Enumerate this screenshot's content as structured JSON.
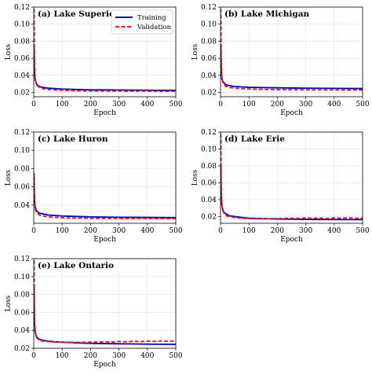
{
  "chart_data": [
    {
      "type": "line",
      "title": "(a) Lake Superior",
      "xlabel": "Epoch",
      "ylabel": "Loss",
      "xlim": [
        0,
        500
      ],
      "ylim": [
        0.015,
        0.12
      ],
      "xticks": [
        0,
        100,
        200,
        300,
        400,
        500
      ],
      "yticks": [
        0.02,
        0.04,
        0.06,
        0.08,
        0.1,
        0.12
      ],
      "ytick_labels": [
        "0.02",
        "0.04",
        "0.06",
        "0.08",
        "0.10",
        "0.12"
      ],
      "grid": true,
      "legend": "top-right",
      "series": [
        {
          "name": "Training",
          "color": "#0000cc",
          "dash": "solid",
          "points": [
            [
              1,
              0.075
            ],
            [
              2,
              0.05
            ],
            [
              3,
              0.042
            ],
            [
              5,
              0.035
            ],
            [
              8,
              0.031
            ],
            [
              12,
              0.029
            ],
            [
              20,
              0.027
            ],
            [
              30,
              0.026
            ],
            [
              50,
              0.025
            ],
            [
              75,
              0.0245
            ],
            [
              100,
              0.024
            ],
            [
              150,
              0.0235
            ],
            [
              200,
              0.023
            ],
            [
              250,
              0.023
            ],
            [
              300,
              0.0228
            ],
            [
              350,
              0.0227
            ],
            [
              400,
              0.0226
            ],
            [
              450,
              0.0225
            ],
            [
              500,
              0.0225
            ]
          ]
        },
        {
          "name": "Validation",
          "color": "#e41a1c",
          "dash": "dashed",
          "points": [
            [
              1,
              0.118
            ],
            [
              2,
              0.07
            ],
            [
              3,
              0.05
            ],
            [
              5,
              0.038
            ],
            [
              8,
              0.031
            ],
            [
              12,
              0.028
            ],
            [
              20,
              0.026
            ],
            [
              30,
              0.0245
            ],
            [
              50,
              0.0235
            ],
            [
              75,
              0.023
            ],
            [
              100,
              0.0225
            ],
            [
              150,
              0.022
            ],
            [
              200,
              0.0218
            ],
            [
              250,
              0.0217
            ],
            [
              300,
              0.0216
            ],
            [
              350,
              0.0215
            ],
            [
              400,
              0.0215
            ],
            [
              450,
              0.0214
            ],
            [
              500,
              0.0214
            ]
          ]
        }
      ]
    },
    {
      "type": "line",
      "title": "(b) Lake Michigan",
      "xlabel": "Epoch",
      "ylabel": "Loss",
      "xlim": [
        0,
        500
      ],
      "ylim": [
        0.015,
        0.12
      ],
      "xticks": [
        0,
        100,
        200,
        300,
        400,
        500
      ],
      "yticks": [
        0.02,
        0.04,
        0.06,
        0.08,
        0.1,
        0.12
      ],
      "ytick_labels": [
        "0.02",
        "0.04",
        "0.06",
        "0.08",
        "0.10",
        "0.12"
      ],
      "grid": true,
      "legend": "",
      "series": [
        {
          "color": "#0000cc",
          "dash": "solid",
          "points": [
            [
              1,
              0.075
            ],
            [
              2,
              0.05
            ],
            [
              3,
              0.043
            ],
            [
              5,
              0.036
            ],
            [
              8,
              0.033
            ],
            [
              12,
              0.031
            ],
            [
              20,
              0.029
            ],
            [
              30,
              0.028
            ],
            [
              50,
              0.027
            ],
            [
              75,
              0.0265
            ],
            [
              100,
              0.026
            ],
            [
              150,
              0.0257
            ],
            [
              200,
              0.0254
            ],
            [
              250,
              0.0252
            ],
            [
              300,
              0.025
            ],
            [
              350,
              0.0249
            ],
            [
              400,
              0.0248
            ],
            [
              450,
              0.0247
            ],
            [
              500,
              0.0246
            ]
          ]
        },
        {
          "color": "#e41a1c",
          "dash": "dashed",
          "points": [
            [
              1,
              0.118
            ],
            [
              2,
              0.07
            ],
            [
              3,
              0.05
            ],
            [
              5,
              0.038
            ],
            [
              8,
              0.032
            ],
            [
              12,
              0.029
            ],
            [
              20,
              0.027
            ],
            [
              30,
              0.026
            ],
            [
              50,
              0.025
            ],
            [
              75,
              0.0245
            ],
            [
              100,
              0.024
            ],
            [
              150,
              0.0235
            ],
            [
              200,
              0.0233
            ],
            [
              250,
              0.0232
            ],
            [
              300,
              0.0231
            ],
            [
              350,
              0.023
            ],
            [
              400,
              0.023
            ],
            [
              450,
              0.0229
            ],
            [
              500,
              0.0229
            ]
          ]
        }
      ]
    },
    {
      "type": "line",
      "title": "(c) Lake Huron",
      "xlabel": "Epoch",
      "ylabel": "Loss",
      "xlim": [
        0,
        500
      ],
      "ylim": [
        0.02,
        0.12
      ],
      "xticks": [
        0,
        100,
        200,
        300,
        400,
        500
      ],
      "yticks": [
        0.04,
        0.06,
        0.08,
        0.1,
        0.12
      ],
      "ytick_labels": [
        "0.04",
        "0.06",
        "0.08",
        "0.10",
        "0.12"
      ],
      "grid": true,
      "legend": "",
      "series": [
        {
          "color": "#0000cc",
          "dash": "solid",
          "points": [
            [
              1,
              0.075
            ],
            [
              2,
              0.052
            ],
            [
              3,
              0.044
            ],
            [
              5,
              0.038
            ],
            [
              8,
              0.035
            ],
            [
              12,
              0.033
            ],
            [
              20,
              0.031
            ],
            [
              30,
              0.0305
            ],
            [
              50,
              0.029
            ],
            [
              75,
              0.0285
            ],
            [
              100,
              0.028
            ],
            [
              150,
              0.0275
            ],
            [
              200,
              0.027
            ],
            [
              250,
              0.0268
            ],
            [
              300,
              0.0266
            ],
            [
              350,
              0.0265
            ],
            [
              400,
              0.0264
            ],
            [
              450,
              0.0263
            ],
            [
              500,
              0.0262
            ]
          ]
        },
        {
          "color": "#e41a1c",
          "dash": "dashed",
          "points": [
            [
              1,
              0.075
            ],
            [
              2,
              0.05
            ],
            [
              3,
              0.042
            ],
            [
              5,
              0.036
            ],
            [
              8,
              0.033
            ],
            [
              12,
              0.031
            ],
            [
              20,
              0.029
            ],
            [
              30,
              0.028
            ],
            [
              50,
              0.027
            ],
            [
              75,
              0.0265
            ],
            [
              100,
              0.026
            ],
            [
              150,
              0.0257
            ],
            [
              200,
              0.0255
            ],
            [
              250,
              0.0254
            ],
            [
              300,
              0.0253
            ],
            [
              350,
              0.0252
            ],
            [
              400,
              0.0252
            ],
            [
              450,
              0.0251
            ],
            [
              500,
              0.0251
            ]
          ]
        }
      ]
    },
    {
      "type": "line",
      "title": "(d) Lake Erie",
      "xlabel": "Epoch",
      "ylabel": "Loss",
      "xlim": [
        0,
        500
      ],
      "ylim": [
        0.012,
        0.12
      ],
      "xticks": [
        0,
        100,
        200,
        300,
        400,
        500
      ],
      "yticks": [
        0.02,
        0.04,
        0.06,
        0.08,
        0.1,
        0.12
      ],
      "ytick_labels": [
        "0.02",
        "0.04",
        "0.06",
        "0.08",
        "0.10",
        "0.12"
      ],
      "grid": true,
      "legend": "",
      "series": [
        {
          "color": "#0000cc",
          "dash": "solid",
          "points": [
            [
              1,
              0.08
            ],
            [
              2,
              0.05
            ],
            [
              3,
              0.04
            ],
            [
              5,
              0.032
            ],
            [
              8,
              0.028
            ],
            [
              12,
              0.025
            ],
            [
              20,
              0.023
            ],
            [
              30,
              0.021
            ],
            [
              50,
              0.02
            ],
            [
              75,
              0.0188
            ],
            [
              100,
              0.018
            ],
            [
              150,
              0.0175
            ],
            [
              200,
              0.017
            ],
            [
              250,
              0.0168
            ],
            [
              300,
              0.0166
            ],
            [
              350,
              0.0165
            ],
            [
              400,
              0.0164
            ],
            [
              450,
              0.0163
            ],
            [
              500,
              0.0163
            ]
          ]
        },
        {
          "color": "#e41a1c",
          "dash": "dashed",
          "points": [
            [
              1,
              0.118
            ],
            [
              2,
              0.07
            ],
            [
              3,
              0.045
            ],
            [
              5,
              0.033
            ],
            [
              8,
              0.027
            ],
            [
              12,
              0.024
            ],
            [
              20,
              0.021
            ],
            [
              30,
              0.02
            ],
            [
              50,
              0.0188
            ],
            [
              75,
              0.018
            ],
            [
              100,
              0.0175
            ],
            [
              150,
              0.0172
            ],
            [
              200,
              0.0175
            ],
            [
              225,
              0.0178
            ],
            [
              250,
              0.018
            ],
            [
              275,
              0.0177
            ],
            [
              300,
              0.0183
            ],
            [
              325,
              0.0178
            ],
            [
              350,
              0.0182
            ],
            [
              375,
              0.0176
            ],
            [
              400,
              0.0184
            ],
            [
              425,
              0.0179
            ],
            [
              450,
              0.0185
            ],
            [
              475,
              0.0178
            ],
            [
              500,
              0.0182
            ]
          ]
        }
      ]
    },
    {
      "type": "line",
      "title": "(e) Lake Ontario",
      "xlabel": "Epoch",
      "ylabel": "Loss",
      "xlim": [
        0,
        500
      ],
      "ylim": [
        0.02,
        0.12
      ],
      "xticks": [
        0,
        100,
        200,
        300,
        400,
        500
      ],
      "yticks": [
        0.02,
        0.04,
        0.06,
        0.08,
        0.1,
        0.12
      ],
      "ytick_labels": [
        "0.02",
        "0.04",
        "0.06",
        "0.08",
        "0.10",
        "0.12"
      ],
      "grid": true,
      "legend": "",
      "series": [
        {
          "color": "#0000cc",
          "dash": "solid",
          "points": [
            [
              1,
              0.09
            ],
            [
              2,
              0.055
            ],
            [
              3,
              0.045
            ],
            [
              5,
              0.038
            ],
            [
              8,
              0.034
            ],
            [
              12,
              0.032
            ],
            [
              20,
              0.03
            ],
            [
              30,
              0.029
            ],
            [
              50,
              0.028
            ],
            [
              75,
              0.0272
            ],
            [
              100,
              0.0268
            ],
            [
              150,
              0.026
            ],
            [
              200,
              0.0255
            ],
            [
              250,
              0.0252
            ],
            [
              300,
              0.025
            ],
            [
              350,
              0.0248
            ],
            [
              400,
              0.0246
            ],
            [
              450,
              0.0245
            ],
            [
              500,
              0.0244
            ]
          ]
        },
        {
          "color": "#e41a1c",
          "dash": "dashed",
          "points": [
            [
              1,
              0.118
            ],
            [
              2,
              0.07
            ],
            [
              3,
              0.05
            ],
            [
              5,
              0.04
            ],
            [
              8,
              0.034
            ],
            [
              12,
              0.031
            ],
            [
              20,
              0.029
            ],
            [
              30,
              0.028
            ],
            [
              50,
              0.0275
            ],
            [
              75,
              0.027
            ],
            [
              100,
              0.0268
            ],
            [
              150,
              0.0266
            ],
            [
              200,
              0.0268
            ],
            [
              225,
              0.027
            ],
            [
              250,
              0.0272
            ],
            [
              275,
              0.0268
            ],
            [
              300,
              0.0276
            ],
            [
              325,
              0.0272
            ],
            [
              350,
              0.0278
            ],
            [
              375,
              0.0274
            ],
            [
              400,
              0.028
            ],
            [
              425,
              0.0276
            ],
            [
              450,
              0.0282
            ],
            [
              475,
              0.0277
            ],
            [
              500,
              0.0283
            ]
          ]
        }
      ]
    }
  ]
}
